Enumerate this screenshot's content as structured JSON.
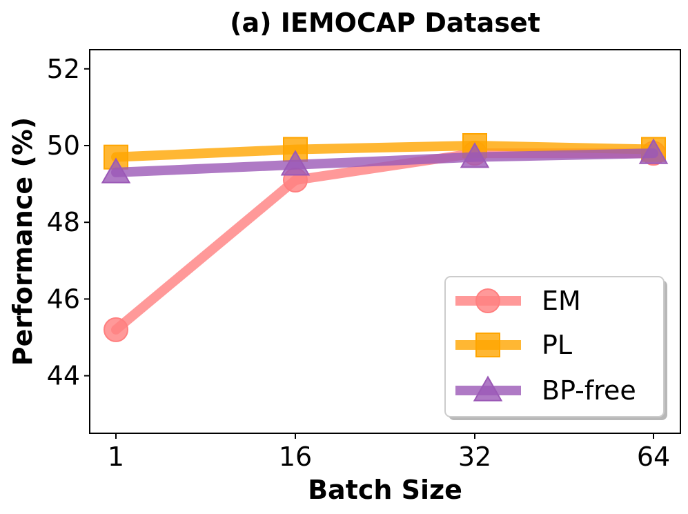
{
  "chart_data": {
    "type": "line",
    "title": "(a) IEMOCAP Dataset",
    "xlabel": "Batch Size",
    "ylabel": "Performance (%)",
    "categories": [
      "1",
      "16",
      "32",
      "64"
    ],
    "ylim": [
      42.5,
      52.5
    ],
    "yticks": [
      44,
      46,
      48,
      50,
      52
    ],
    "grid": false,
    "legend_position": "lower-right",
    "series": [
      {
        "name": "EM",
        "values": [
          45.2,
          49.1,
          49.8,
          49.8
        ],
        "marker": "circle",
        "color": "#ff7f7f"
      },
      {
        "name": "PL",
        "values": [
          49.7,
          49.9,
          50.0,
          49.9
        ],
        "marker": "square",
        "color": "#ffa500"
      },
      {
        "name": "BP-free",
        "values": [
          49.3,
          49.5,
          49.7,
          49.8
        ],
        "marker": "triangle",
        "color": "#9b59b6"
      }
    ]
  }
}
